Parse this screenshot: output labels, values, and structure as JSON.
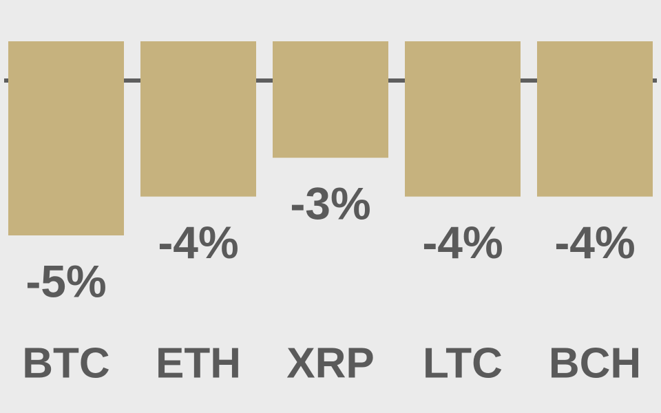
{
  "chart_data": {
    "type": "bar",
    "categories": [
      "BTC",
      "ETH",
      "XRP",
      "LTC",
      "BCH"
    ],
    "values": [
      -5,
      -4,
      -3,
      -4,
      -4
    ],
    "value_labels": [
      "-5%",
      "-4%",
      "-3%",
      "-4%",
      "-4%"
    ],
    "color": "#c6b27e",
    "ylim": [
      -5,
      0
    ]
  }
}
